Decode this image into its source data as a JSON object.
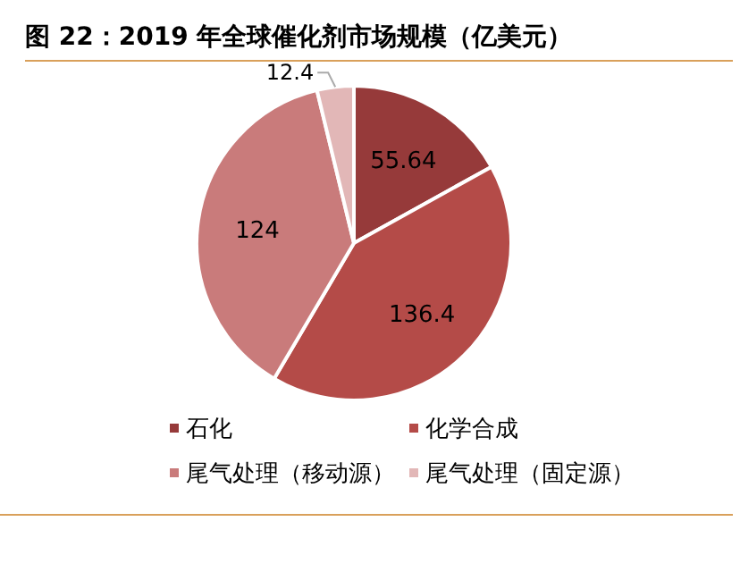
{
  "chart_data": {
    "type": "pie",
    "title": "图 22：2019 年全球催化剂市场规模（亿美元）",
    "categories": [
      "石化",
      "化学合成",
      "尾气处理（移动源）",
      "尾气处理（固定源）"
    ],
    "values": [
      55.64,
      136.4,
      124,
      12.4
    ],
    "colors": [
      "#963a3a",
      "#b44b48",
      "#c97b7b",
      "#e2b7b7"
    ],
    "data_labels": true,
    "legend": "bottom"
  }
}
